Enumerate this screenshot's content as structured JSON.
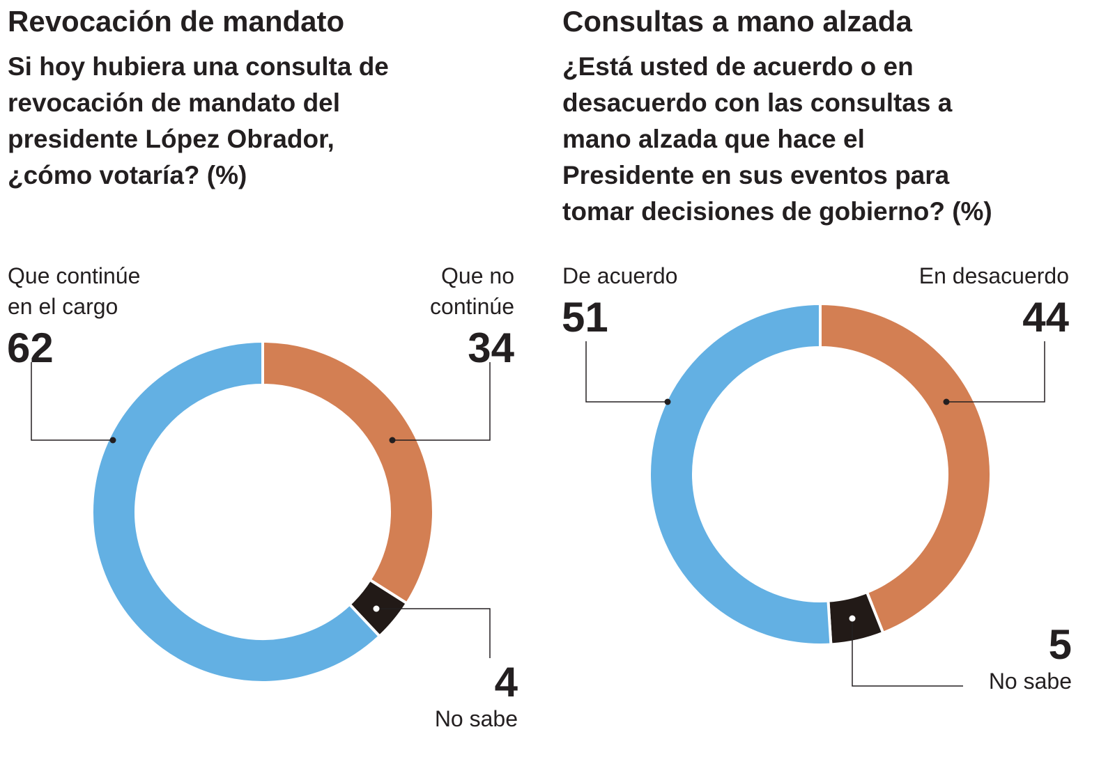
{
  "colors": {
    "si": "#63b0e3",
    "no": "#d37f53",
    "ns": "#221a17",
    "text": "#231f20"
  },
  "chart_data": [
    {
      "type": "pie",
      "style": "donut",
      "title": "Revocación de mandato",
      "subtitle": "Si hoy hubiera una consulta de revocación de mandato del presidente López Obrador, ¿cómo votaría?  (%)",
      "slices": [
        {
          "label": "Que no continúe",
          "value": 34,
          "color": "#d37f53"
        },
        {
          "label": "No sabe",
          "value": 4,
          "color": "#221a17"
        },
        {
          "label": "Que continúe en el cargo",
          "value": 62,
          "color": "#63b0e3"
        }
      ],
      "subtitle_lines": [
        "Si hoy hubiera una consulta de",
        "revocación de mandato del",
        "presidente López Obrador,",
        "¿cómo votaría?  (%)"
      ],
      "label_lines": {
        "continue": [
          "Que continúe",
          "en el cargo"
        ],
        "no_continue": [
          "Que no",
          "continúe"
        ],
        "ns": [
          "No sabe"
        ]
      }
    },
    {
      "type": "pie",
      "style": "donut",
      "title": "Consultas a mano alzada",
      "subtitle": "¿Está usted de acuerdo o en desacuerdo con las consultas a mano alzada que hace el Presidente en sus eventos para tomar decisiones de gobierno?  (%)",
      "slices": [
        {
          "label": "En desacuerdo",
          "value": 44,
          "color": "#d37f53"
        },
        {
          "label": "No sabe",
          "value": 5,
          "color": "#221a17"
        },
        {
          "label": "De acuerdo",
          "value": 51,
          "color": "#63b0e3"
        }
      ],
      "subtitle_lines": [
        "¿Está usted de acuerdo o en",
        "desacuerdo con las consultas a",
        "mano alzada que hace el",
        "Presidente en sus eventos para",
        "tomar decisiones de gobierno?  (%)"
      ]
    }
  ]
}
